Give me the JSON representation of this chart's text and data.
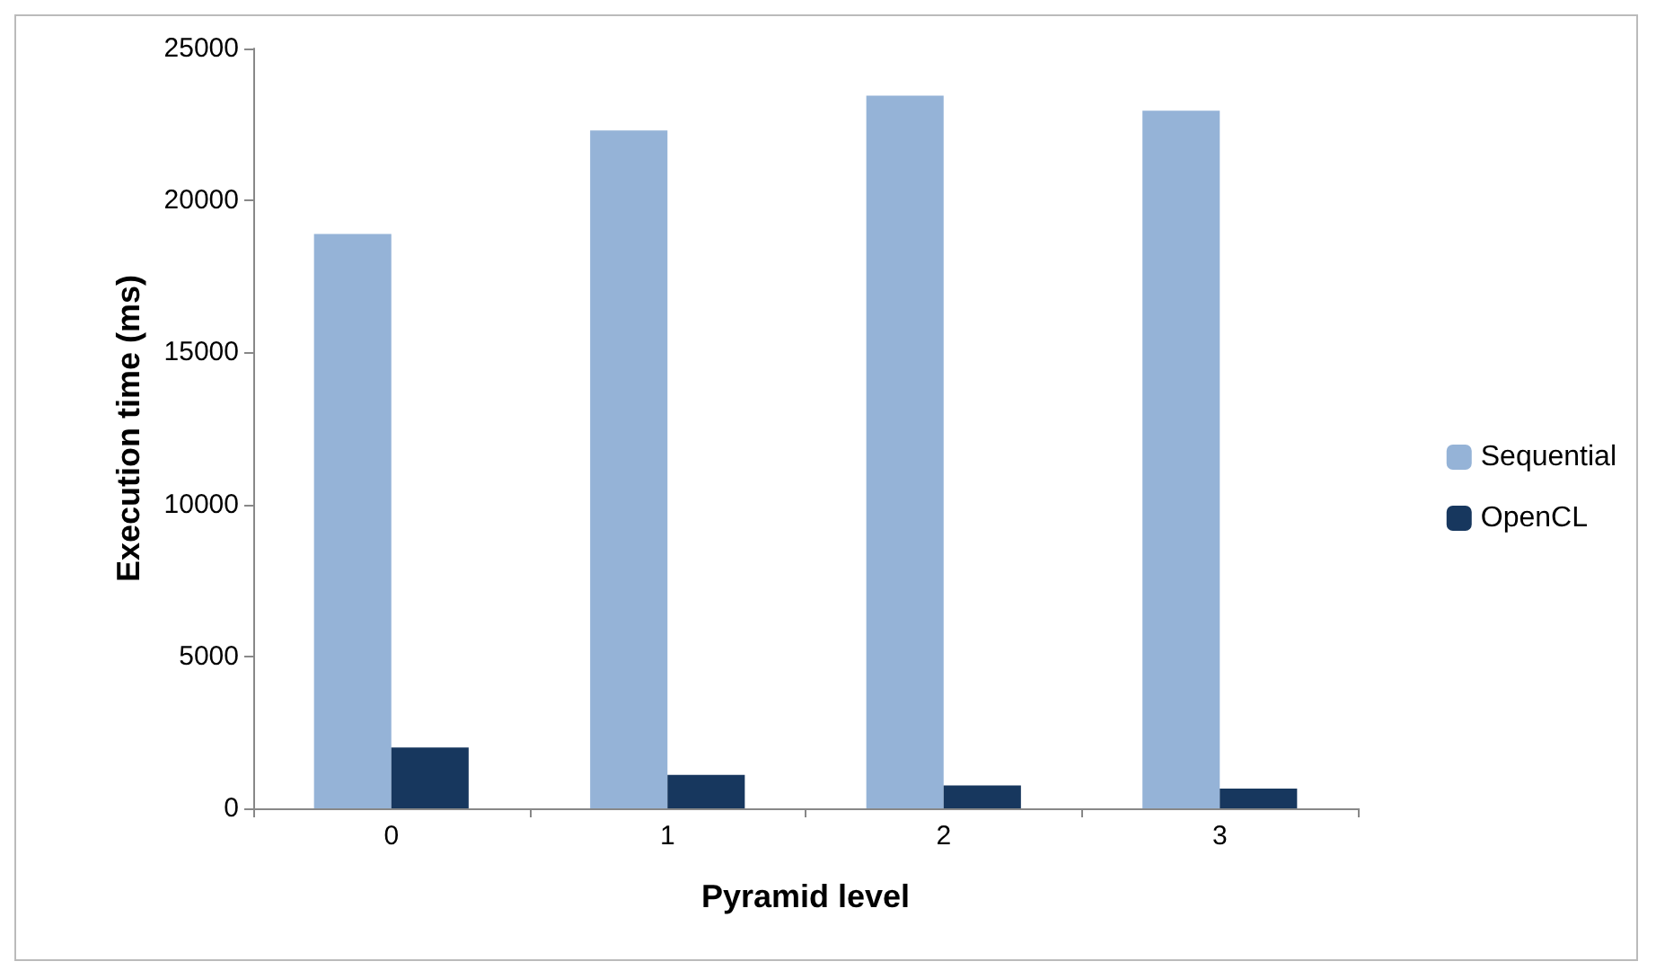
{
  "chart_data": {
    "type": "bar",
    "xlabel": "Pyramid level",
    "ylabel": "Execution time (ms)",
    "categories": [
      "0",
      "1",
      "2",
      "3"
    ],
    "series": [
      {
        "name": "Sequential",
        "color": "#95b3d7",
        "values": [
          18900,
          22300,
          23450,
          22950
        ]
      },
      {
        "name": "OpenCL",
        "color": "#17375e",
        "values": [
          2000,
          1100,
          750,
          650
        ]
      }
    ],
    "ylim": [
      0,
      25000
    ],
    "yticks": [
      0,
      5000,
      10000,
      15000,
      20000,
      25000
    ],
    "grid": false,
    "legend": "right"
  }
}
